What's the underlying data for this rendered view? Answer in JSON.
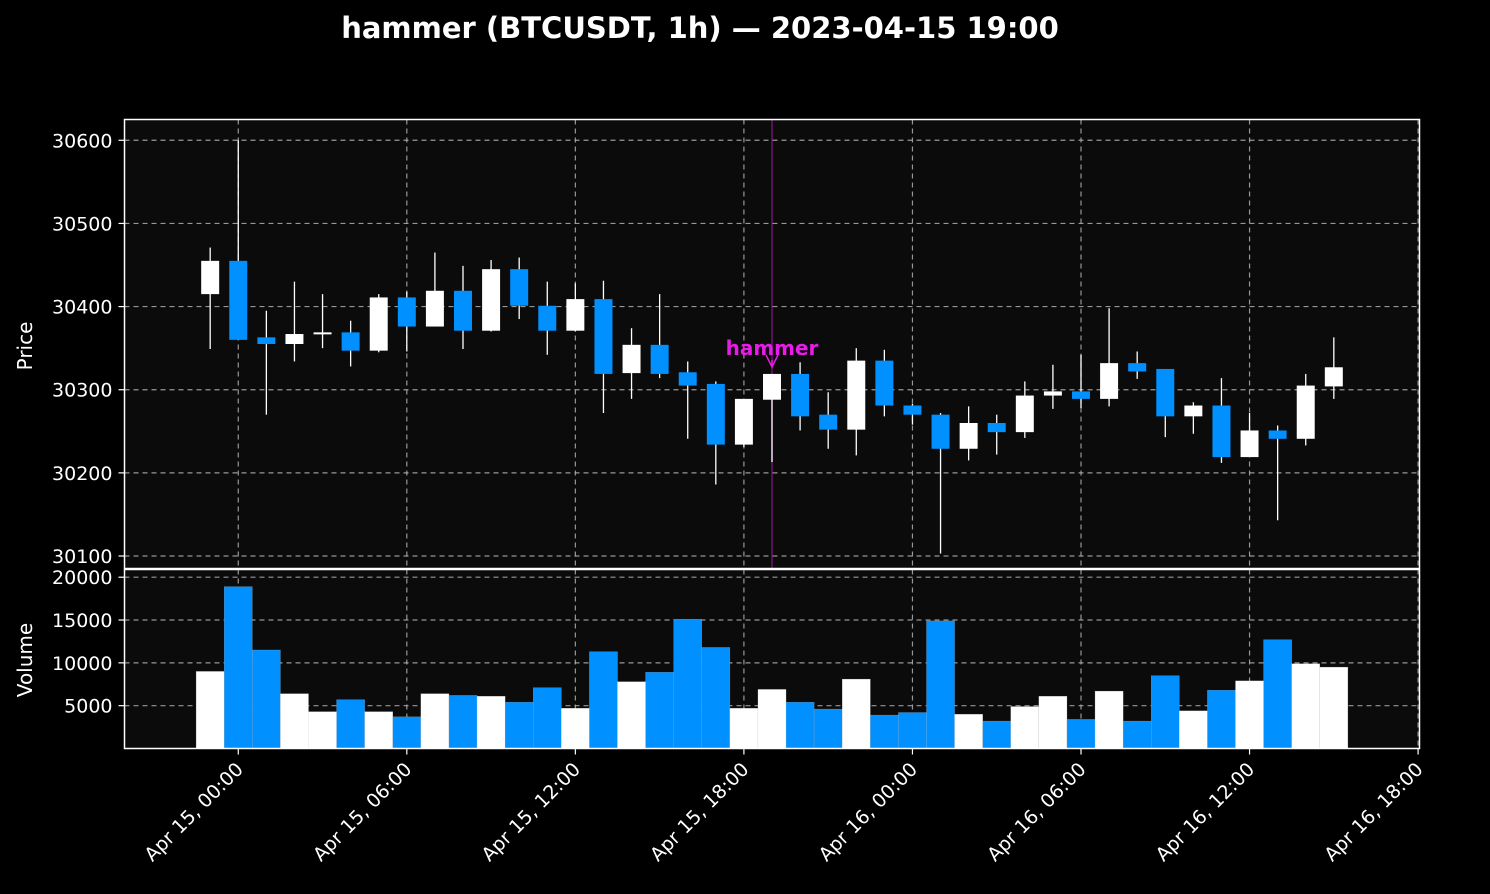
{
  "chart_data": {
    "type": "candlestick",
    "title": "hammer (BTCUSDT, 1h) — 2023-04-15 19:00",
    "price_panel": {
      "ylabel": "Price",
      "ylim": [
        30085,
        30625
      ],
      "yticks": [
        30100,
        30200,
        30300,
        30400,
        30500,
        30600
      ]
    },
    "volume_panel": {
      "ylabel": "Volume",
      "ylim": [
        0,
        20900
      ],
      "yticks": [
        5000,
        10000,
        15000,
        20000
      ]
    },
    "x_axis": {
      "ticks": [
        {
          "hour": 0,
          "label": "Apr 15, 00:00"
        },
        {
          "hour": 6,
          "label": "Apr 15, 06:00"
        },
        {
          "hour": 12,
          "label": "Apr 15, 12:00"
        },
        {
          "hour": 18,
          "label": "Apr 15, 18:00"
        },
        {
          "hour": 24,
          "label": "Apr 16, 00:00"
        },
        {
          "hour": 30,
          "label": "Apr 16, 06:00"
        },
        {
          "hour": 36,
          "label": "Apr 16, 12:00"
        },
        {
          "hour": 42,
          "label": "Apr 16, 18:00"
        }
      ],
      "xlim_hours": [
        -4.05,
        42.05
      ]
    },
    "grid": true,
    "colors": {
      "up": "#ffffff",
      "down": "#0090ff",
      "background": "#0b0b0b",
      "figure": "#000000",
      "annotation": "#e81be8",
      "grid": "#b0b0b0"
    },
    "annotation": {
      "text": "hammer",
      "hour": 19
    },
    "candles": [
      {
        "t": -1,
        "o": 30415,
        "h": 30471,
        "l": 30349,
        "c": 30455,
        "v": 9000
      },
      {
        "t": 0,
        "o": 30455,
        "h": 30600,
        "l": 30360,
        "c": 30360,
        "v": 18900
      },
      {
        "t": 1,
        "o": 30363,
        "h": 30395,
        "l": 30270,
        "c": 30355,
        "v": 11500
      },
      {
        "t": 2,
        "o": 30355,
        "h": 30430,
        "l": 30334,
        "c": 30367,
        "v": 6400
      },
      {
        "t": 3,
        "o": 30367,
        "h": 30415,
        "l": 30350,
        "c": 30369,
        "v": 4300
      },
      {
        "t": 4,
        "o": 30369,
        "h": 30383,
        "l": 30328,
        "c": 30347,
        "v": 5700
      },
      {
        "t": 5,
        "o": 30347,
        "h": 30415,
        "l": 30345,
        "c": 30411,
        "v": 4300
      },
      {
        "t": 6,
        "o": 30411,
        "h": 30418,
        "l": 30346,
        "c": 30376,
        "v": 3700
      },
      {
        "t": 7,
        "o": 30376,
        "h": 30465,
        "l": 30376,
        "c": 30419,
        "v": 6400
      },
      {
        "t": 8,
        "o": 30419,
        "h": 30449,
        "l": 30349,
        "c": 30371,
        "v": 6200
      },
      {
        "t": 9,
        "o": 30371,
        "h": 30456,
        "l": 30370,
        "c": 30445,
        "v": 6100
      },
      {
        "t": 10,
        "o": 30445,
        "h": 30459,
        "l": 30385,
        "c": 30401,
        "v": 5400
      },
      {
        "t": 11,
        "o": 30401,
        "h": 30430,
        "l": 30342,
        "c": 30371,
        "v": 7100
      },
      {
        "t": 12,
        "o": 30371,
        "h": 30428,
        "l": 30370,
        "c": 30409,
        "v": 4700
      },
      {
        "t": 13,
        "o": 30409,
        "h": 30431,
        "l": 30272,
        "c": 30319,
        "v": 11300
      },
      {
        "t": 14,
        "o": 30320,
        "h": 30374,
        "l": 30289,
        "c": 30354,
        "v": 7800
      },
      {
        "t": 15,
        "o": 30354,
        "h": 30415,
        "l": 30314,
        "c": 30319,
        "v": 8900
      },
      {
        "t": 16,
        "o": 30321,
        "h": 30334,
        "l": 30241,
        "c": 30305,
        "v": 15100
      },
      {
        "t": 17,
        "o": 30307,
        "h": 30310,
        "l": 30186,
        "c": 30234,
        "v": 11800
      },
      {
        "t": 18,
        "o": 30234,
        "h": 30289,
        "l": 30231,
        "c": 30289,
        "v": 4700
      },
      {
        "t": 19,
        "o": 30288,
        "h": 30319,
        "l": 30213,
        "c": 30319,
        "v": 6900
      },
      {
        "t": 20,
        "o": 30319,
        "h": 30333,
        "l": 30251,
        "c": 30268,
        "v": 5400
      },
      {
        "t": 21,
        "o": 30270,
        "h": 30297,
        "l": 30229,
        "c": 30252,
        "v": 4600
      },
      {
        "t": 22,
        "o": 30252,
        "h": 30350,
        "l": 30221,
        "c": 30335,
        "v": 8100
      },
      {
        "t": 23,
        "o": 30335,
        "h": 30348,
        "l": 30268,
        "c": 30281,
        "v": 3900
      },
      {
        "t": 24,
        "o": 30281,
        "h": 30283,
        "l": 30258,
        "c": 30270,
        "v": 4200
      },
      {
        "t": 25,
        "o": 30270,
        "h": 30272,
        "l": 30103,
        "c": 30229,
        "v": 14900
      },
      {
        "t": 26,
        "o": 30229,
        "h": 30280,
        "l": 30215,
        "c": 30260,
        "v": 4000
      },
      {
        "t": 27,
        "o": 30260,
        "h": 30270,
        "l": 30222,
        "c": 30249,
        "v": 3200
      },
      {
        "t": 28,
        "o": 30249,
        "h": 30310,
        "l": 30242,
        "c": 30293,
        "v": 4900
      },
      {
        "t": 29,
        "o": 30293,
        "h": 30330,
        "l": 30277,
        "c": 30298,
        "v": 6100
      },
      {
        "t": 30,
        "o": 30298,
        "h": 30342,
        "l": 30278,
        "c": 30289,
        "v": 3400
      },
      {
        "t": 31,
        "o": 30289,
        "h": 30398,
        "l": 30280,
        "c": 30332,
        "v": 6700
      },
      {
        "t": 32,
        "o": 30332,
        "h": 30346,
        "l": 30313,
        "c": 30322,
        "v": 3200
      },
      {
        "t": 33,
        "o": 30325,
        "h": 30325,
        "l": 30243,
        "c": 30268,
        "v": 8500
      },
      {
        "t": 34,
        "o": 30268,
        "h": 30285,
        "l": 30247,
        "c": 30281,
        "v": 4400
      },
      {
        "t": 35,
        "o": 30281,
        "h": 30314,
        "l": 30212,
        "c": 30219,
        "v": 6800
      },
      {
        "t": 36,
        "o": 30219,
        "h": 30272,
        "l": 30219,
        "c": 30251,
        "v": 7900
      },
      {
        "t": 37,
        "o": 30251,
        "h": 30257,
        "l": 30143,
        "c": 30241,
        "v": 12700
      },
      {
        "t": 38,
        "o": 30241,
        "h": 30319,
        "l": 30233,
        "c": 30305,
        "v": 9900
      },
      {
        "t": 39,
        "o": 30304,
        "h": 30363,
        "l": 30289,
        "c": 30327,
        "v": 9500
      }
    ]
  }
}
